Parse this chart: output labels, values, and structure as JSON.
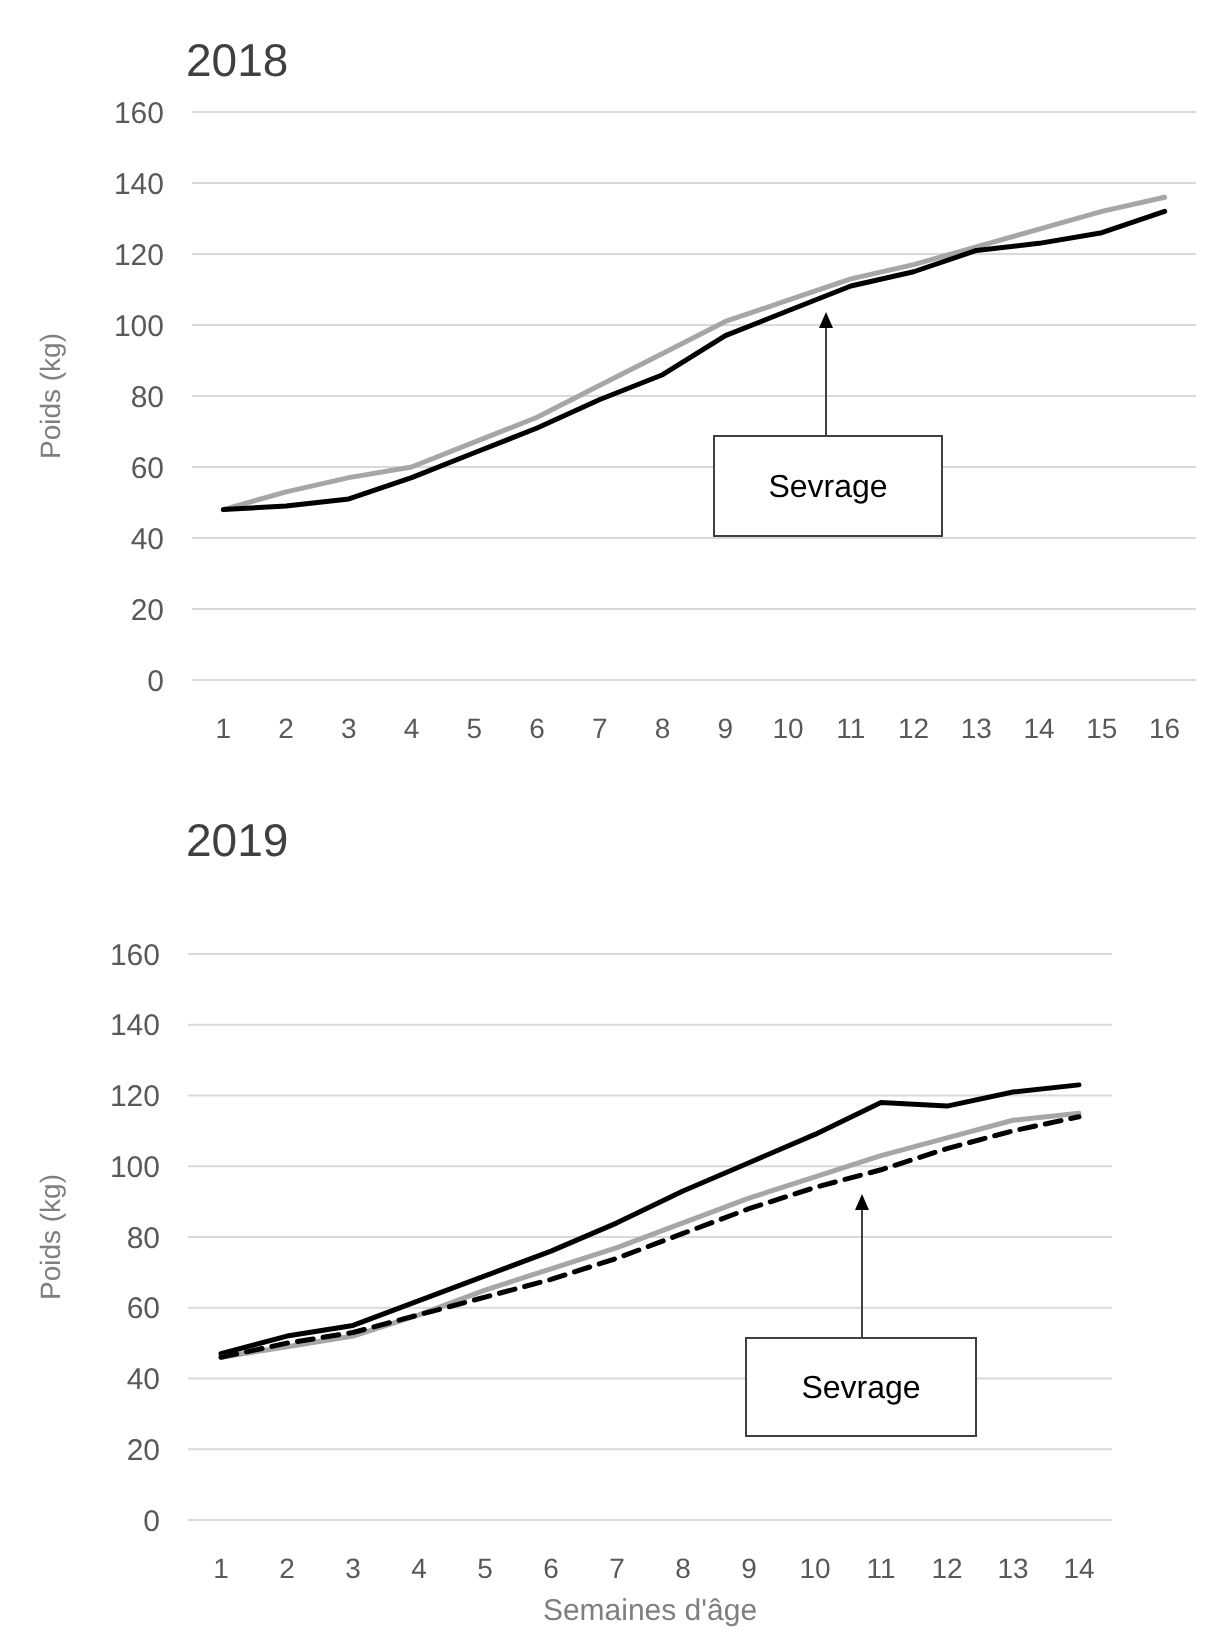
{
  "chart_data": [
    {
      "type": "line",
      "title": "2018",
      "ylabel": "Poids (kg)",
      "categories": [
        "1",
        "2",
        "3",
        "4",
        "5",
        "6",
        "7",
        "8",
        "9",
        "10",
        "11",
        "12",
        "13",
        "14",
        "15",
        "16"
      ],
      "series": [
        {
          "color": "#a6a6a6",
          "values": [
            48,
            53,
            57,
            60,
            67,
            74,
            83,
            92,
            101,
            107,
            113,
            117,
            122,
            127,
            132,
            136
          ]
        },
        {
          "color": "#000000",
          "values": [
            48,
            49,
            51,
            57,
            64,
            71,
            79,
            86,
            97,
            104,
            111,
            115,
            121,
            123,
            126,
            132
          ]
        }
      ],
      "ylim": [
        0,
        160
      ],
      "yticks": [
        0,
        20,
        40,
        60,
        80,
        100,
        120,
        140,
        160
      ],
      "grid": "y",
      "annotations": [
        "Sevrage"
      ]
    },
    {
      "type": "line",
      "title": "2019",
      "xlabel": "Semaines d'âge",
      "ylabel": "Poids (kg)",
      "categories": [
        "1",
        "2",
        "3",
        "4",
        "5",
        "6",
        "7",
        "8",
        "9",
        "10",
        "11",
        "12",
        "13",
        "14"
      ],
      "series": [
        {
          "color": "#000000",
          "values": [
            47,
            52,
            55,
            62,
            69,
            76,
            84,
            93,
            101,
            109,
            118,
            117,
            121,
            123
          ]
        },
        {
          "color": "#a6a6a6",
          "values": [
            46,
            49,
            52,
            58,
            65,
            71,
            77,
            84,
            91,
            97,
            103,
            108,
            113,
            115
          ]
        },
        {
          "color": "#000000",
          "line_style": "dashed",
          "values": [
            46,
            50,
            53,
            58,
            63,
            68,
            74,
            81,
            88,
            94,
            99,
            105,
            110,
            114
          ]
        }
      ],
      "ylim": [
        0,
        160
      ],
      "yticks": [
        0,
        20,
        40,
        60,
        80,
        100,
        120,
        140,
        160
      ],
      "grid": "y",
      "annotations": [
        "Sevrage"
      ]
    }
  ]
}
